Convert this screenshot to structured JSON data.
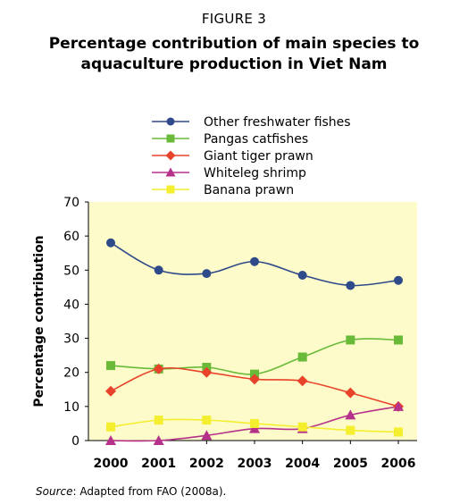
{
  "figure_label": "FIGURE 3",
  "source": {
    "prefix": "Source",
    "text": ": Adapted from FAO (2008a)."
  },
  "chart_data": {
    "type": "line",
    "title": "Percentage contribution of main species to aquaculture production in Viet Nam",
    "title_lines": [
      "Percentage contribution of main species to",
      "aquaculture production in Viet Nam"
    ],
    "xlabel": "",
    "ylabel": "Percentage contribution",
    "x": [
      "2000",
      "2001",
      "2002",
      "2003",
      "2004",
      "2005",
      "2006"
    ],
    "ylim": [
      0,
      70
    ],
    "yticks": [
      0,
      10,
      20,
      30,
      40,
      50,
      60,
      70
    ],
    "legend_position": "top",
    "grid": false,
    "plot_background": "#fdfbc9",
    "series": [
      {
        "name": "Other freshwater fishes",
        "color": "#2e4a8a",
        "marker": "circle",
        "values": [
          58,
          50,
          49,
          52.5,
          48.5,
          45.5,
          47
        ]
      },
      {
        "name": "Pangas catfishes",
        "color": "#6aba3a",
        "marker": "square",
        "values": [
          22,
          21,
          21.5,
          19.5,
          24.5,
          29.5,
          29.5
        ]
      },
      {
        "name": "Giant tiger prawn",
        "color": "#e8432a",
        "marker": "diamond",
        "values": [
          14.5,
          21,
          20,
          18,
          17.5,
          14,
          10
        ]
      },
      {
        "name": "Whiteleg shrimp",
        "color": "#b5318a",
        "marker": "triangle",
        "values": [
          0,
          0,
          1.5,
          3.5,
          3.5,
          7.5,
          10
        ]
      },
      {
        "name": "Banana prawn",
        "color": "#f4ee2e",
        "marker": "square",
        "values": [
          4,
          6,
          6,
          5,
          4,
          3,
          2.5
        ]
      }
    ]
  }
}
